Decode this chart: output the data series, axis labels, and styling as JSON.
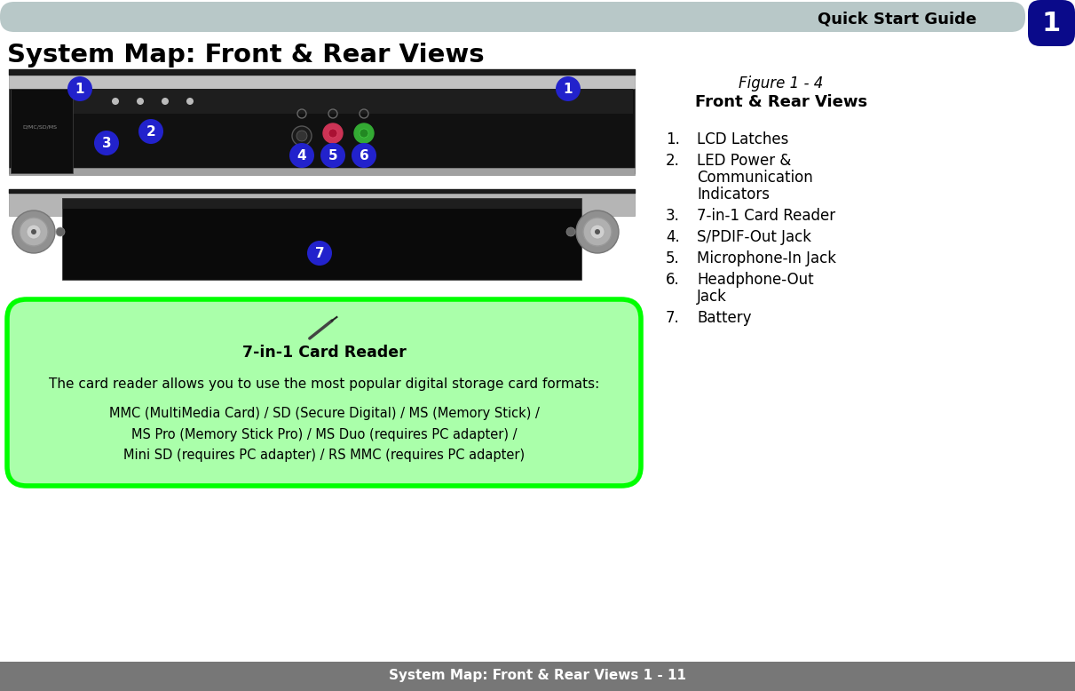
{
  "title": "System Map: Front & Rear Views",
  "header_text": "Quick Start Guide",
  "header_bg": "#b8c8c8",
  "header_num": "1",
  "header_num_bg": "#0a0a8a",
  "figure_caption_italic": "Figure 1 - 4",
  "figure_caption_bold": "Front & Rear Views",
  "list_items": [
    "LCD Latches",
    "LED Power &\nCommunication\nIndicators",
    "7-in-1 Card Reader",
    "S/PDIF-Out Jack",
    "Microphone-In Jack",
    "Headphone-Out\nJack",
    "Battery"
  ],
  "note_title": "7-in-1 Card Reader",
  "note_intro": "The card reader allows you to use the most popular digital storage card formats:",
  "note_lines": [
    "MMC (MultiMedia Card) / SD (Secure Digital) / MS (Memory Stick) /",
    "MS Pro (Memory Stick Pro) / MS Duo (requires PC adapter) /",
    "Mini SD (requires PC adapter) / RS MMC (requires PC adapter)"
  ],
  "note_bg": "#aaffaa",
  "note_border": "#00ff00",
  "footer_text": "System Map: Front & Rear Views 1 - 11",
  "footer_bg": "#777777",
  "callout_color": "#2222cc",
  "callout_text_color": "#ffffff"
}
